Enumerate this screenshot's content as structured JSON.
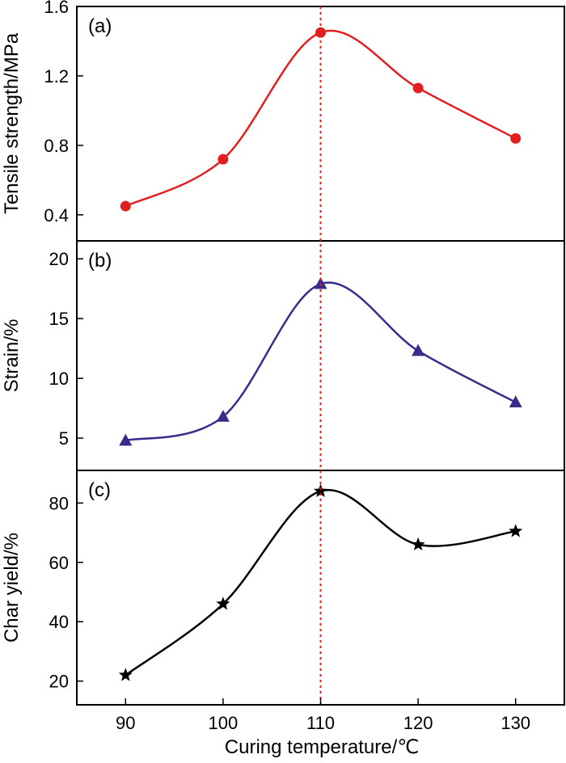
{
  "chart_data": {
    "type": "line",
    "x": [
      90,
      100,
      110,
      120,
      130
    ],
    "xlabel": "Curing temperature/℃",
    "xticks": [
      "90",
      "100",
      "110",
      "120",
      "130"
    ],
    "xlim": [
      85,
      135
    ],
    "reference_line": {
      "x": 110,
      "color": "#e02020",
      "style": "dotted"
    },
    "panels": [
      {
        "label": "(a)",
        "ylabel": "Tensile strength/MPa",
        "ylim": [
          0.25,
          1.6
        ],
        "yticks": [
          "0.4",
          "0.8",
          "1.2",
          "1.6"
        ],
        "yticks_values": [
          0.4,
          0.8,
          1.2,
          1.6
        ],
        "series": [
          {
            "name": "Tensile strength",
            "values": [
              0.45,
              0.72,
              1.45,
              1.13,
              0.84
            ],
            "color": "#e02020",
            "marker": "circle"
          }
        ]
      },
      {
        "label": "(b)",
        "ylabel": "Strain/%",
        "ylim": [
          2.3,
          21.5
        ],
        "yticks": [
          "5",
          "10",
          "15",
          "20"
        ],
        "yticks_values": [
          5,
          10,
          15,
          20
        ],
        "series": [
          {
            "name": "Strain",
            "values": [
              4.8,
              6.8,
              17.9,
              12.3,
              8.0
            ],
            "color": "#3a2a8c",
            "marker": "triangle"
          }
        ]
      },
      {
        "label": "(c)",
        "ylabel": "Char yield/%",
        "ylim": [
          12,
          91
        ],
        "yticks": [
          "20",
          "40",
          "60",
          "80"
        ],
        "yticks_values": [
          20,
          40,
          60,
          80
        ],
        "series": [
          {
            "name": "Char yield",
            "values": [
              22,
              46,
              84,
              66,
              70.5
            ],
            "color": "#000000",
            "marker": "star"
          }
        ]
      }
    ]
  }
}
